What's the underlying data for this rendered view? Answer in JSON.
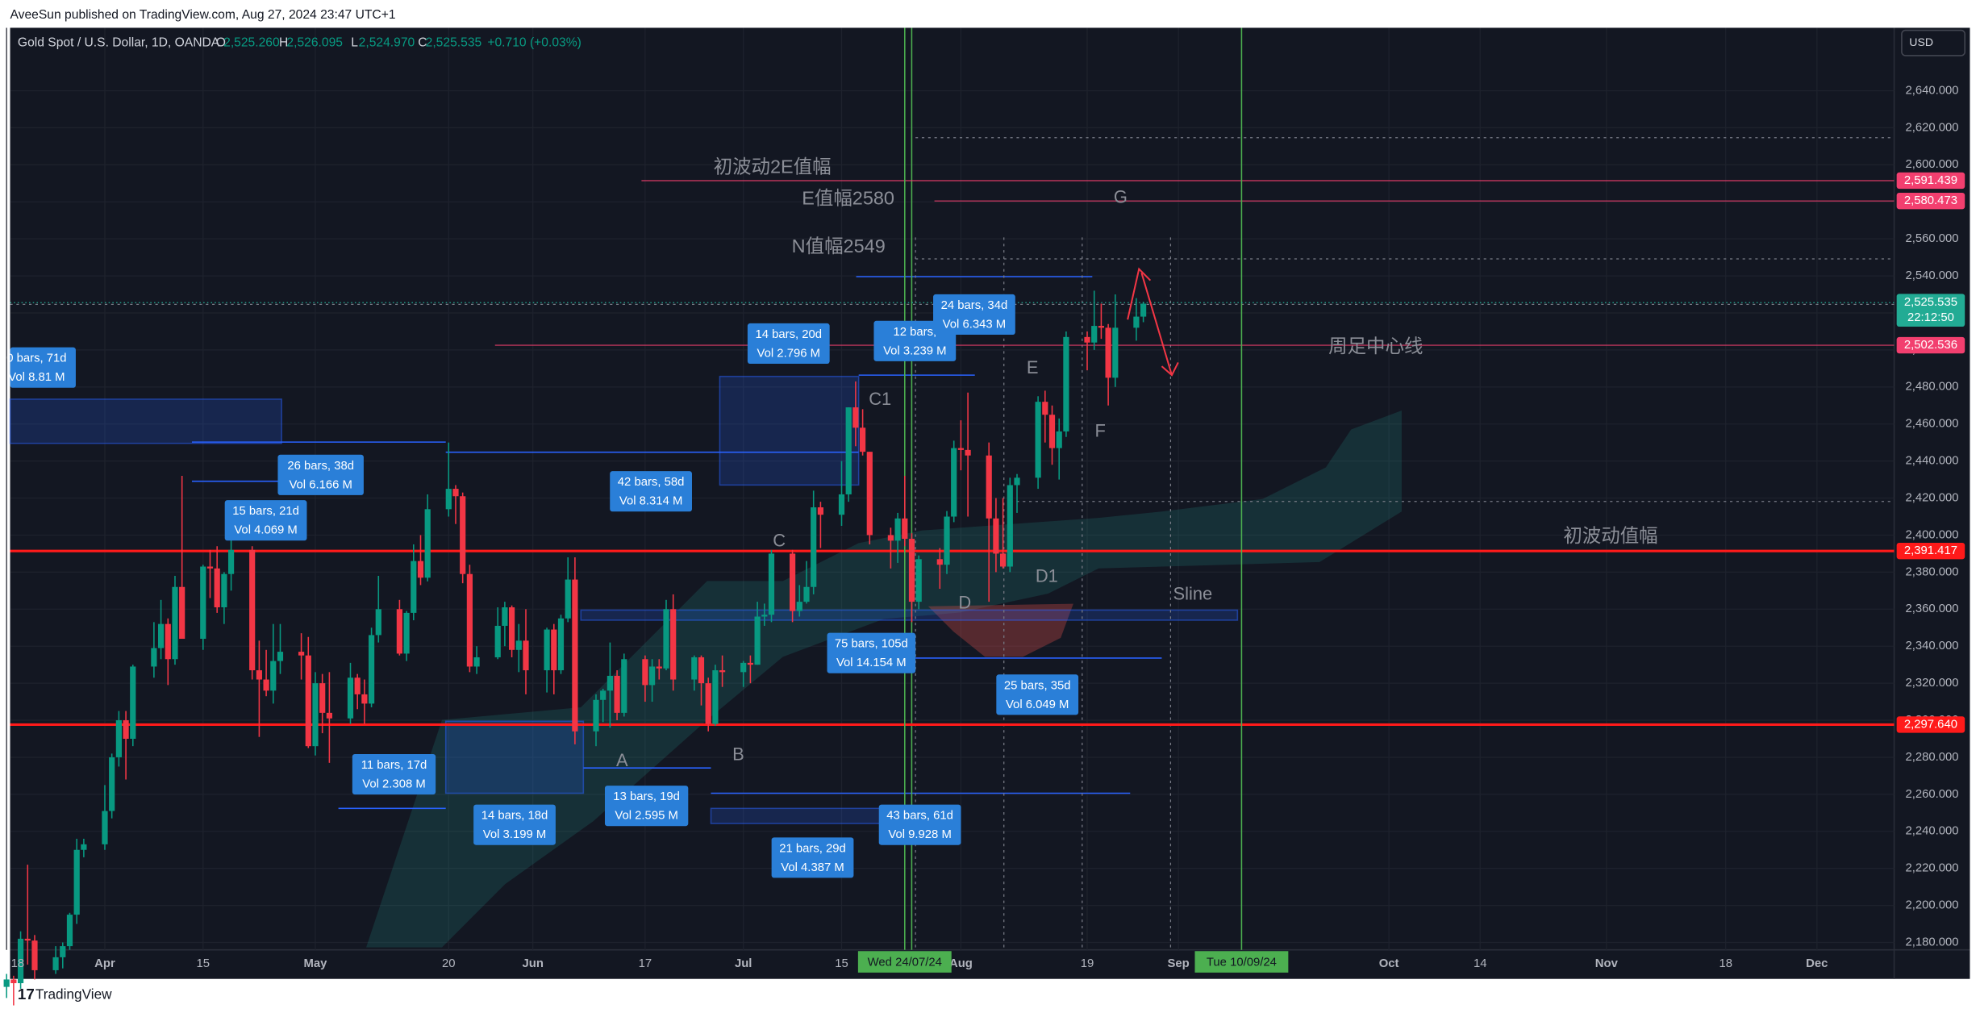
{
  "header": {
    "publisher": "AveeSun published on TradingView.com, Aug 27, 2024 23:47 UTC+1",
    "footer_brand": "TradingView"
  },
  "chart_data": {
    "type": "candlestick",
    "title": "Gold Spot / U.S. Dollar, 1D, OANDA",
    "currency": "USD",
    "legend_ohlc": [
      {
        "key": "O",
        "value": "2,525.260"
      },
      {
        "key": "H",
        "value": "2,526.095"
      },
      {
        "key": "L",
        "value": "2,524.970"
      },
      {
        "key": "C",
        "value": "2,525.535"
      }
    ],
    "change": "+0.710 (+0.03%)",
    "up_color": "#089981",
    "down_color": "#f23645",
    "x": [
      0,
      1,
      2,
      3,
      4,
      7,
      8,
      9,
      10,
      11,
      14,
      15,
      16,
      17,
      18,
      21,
      22,
      23,
      24,
      25,
      28,
      29,
      30,
      31,
      32,
      35,
      36,
      37,
      38,
      39,
      42,
      43,
      44,
      45,
      46,
      49,
      50,
      51,
      52,
      53,
      56,
      57,
      58,
      59,
      60,
      63,
      64,
      65,
      66,
      67,
      70,
      71,
      72,
      73,
      74,
      77,
      78,
      79,
      80,
      81,
      84,
      85,
      86,
      87,
      88,
      91,
      92,
      93,
      94,
      95,
      98,
      99,
      100,
      101,
      102,
      105,
      106,
      107,
      108,
      109,
      112,
      113,
      114,
      115,
      116,
      119,
      120,
      121,
      122,
      123,
      126,
      127,
      128,
      129,
      130,
      133,
      134,
      135,
      136,
      137,
      140,
      141,
      142,
      143,
      144,
      147,
      148,
      149,
      150,
      151,
      154,
      155,
      156,
      157,
      158,
      161,
      162
    ],
    "ohlc": [
      [
        2156,
        2163,
        2150,
        2160
      ],
      [
        2160,
        2162,
        2146,
        2158
      ],
      [
        2158,
        2186,
        2155,
        2182
      ],
      [
        2182,
        2222,
        2168,
        2181
      ],
      [
        2181,
        2184,
        2160,
        2165
      ],
      [
        2165,
        2178,
        2163,
        2172
      ],
      [
        2172,
        2180,
        2166,
        2178
      ],
      [
        2178,
        2196,
        2176,
        2195
      ],
      [
        2195,
        2236,
        2190,
        2230
      ],
      [
        2230,
        2236,
        2226,
        2233
      ],
      [
        2233,
        2265,
        2230,
        2251
      ],
      [
        2251,
        2282,
        2247,
        2280
      ],
      [
        2280,
        2305,
        2275,
        2300
      ],
      [
        2300,
        2305,
        2268,
        2290
      ],
      [
        2290,
        2330,
        2286,
        2329
      ],
      [
        2329,
        2353,
        2323,
        2339
      ],
      [
        2339,
        2365,
        2333,
        2352
      ],
      [
        2352,
        2355,
        2319,
        2333
      ],
      [
        2333,
        2378,
        2330,
        2372
      ],
      [
        2372,
        2432,
        2345,
        2344
      ],
      [
        2344,
        2384,
        2338,
        2383
      ],
      [
        2383,
        2392,
        2366,
        2382
      ],
      [
        2382,
        2394,
        2358,
        2361
      ],
      [
        2361,
        2380,
        2352,
        2379
      ],
      [
        2379,
        2418,
        2370,
        2392
      ],
      [
        2392,
        2394,
        2322,
        2327
      ],
      [
        2327,
        2343,
        2291,
        2322
      ],
      [
        2322,
        2338,
        2313,
        2316
      ],
      [
        2316,
        2352,
        2309,
        2332
      ],
      [
        2332,
        2352,
        2325,
        2337
      ],
      [
        2337,
        2347,
        2322,
        2335
      ],
      [
        2335,
        2345,
        2285,
        2286
      ],
      [
        2286,
        2326,
        2281,
        2320
      ],
      [
        2320,
        2325,
        2293,
        2304
      ],
      [
        2304,
        2326,
        2277,
        2301
      ],
      [
        2301,
        2331,
        2298,
        2323
      ],
      [
        2323,
        2325,
        2306,
        2314
      ],
      [
        2314,
        2322,
        2298,
        2309
      ],
      [
        2309,
        2350,
        2307,
        2346
      ],
      [
        2346,
        2378,
        2342,
        2360
      ],
      [
        2360,
        2365,
        2335,
        2336
      ],
      [
        2336,
        2359,
        2332,
        2358
      ],
      [
        2358,
        2395,
        2354,
        2386
      ],
      [
        2386,
        2400,
        2373,
        2377
      ],
      [
        2377,
        2422,
        2375,
        2414
      ],
      [
        2414,
        2450,
        2410,
        2425
      ],
      [
        2425,
        2427,
        2406,
        2421
      ],
      [
        2421,
        2423,
        2374,
        2379
      ],
      [
        2379,
        2384,
        2326,
        2329
      ],
      [
        2329,
        2340,
        2325,
        2334
      ],
      [
        2334,
        2361,
        2333,
        2351
      ],
      [
        2351,
        2364,
        2340,
        2361
      ],
      [
        2361,
        2362,
        2334,
        2338
      ],
      [
        2338,
        2352,
        2326,
        2343
      ],
      [
        2343,
        2360,
        2314,
        2327
      ],
      [
        2327,
        2350,
        2315,
        2349
      ],
      [
        2349,
        2352,
        2314,
        2327
      ],
      [
        2327,
        2357,
        2325,
        2355
      ],
      [
        2355,
        2388,
        2353,
        2376
      ],
      [
        2376,
        2388,
        2287,
        2294
      ],
      [
        2294,
        2314,
        2286,
        2311
      ],
      [
        2311,
        2317,
        2299,
        2316
      ],
      [
        2316,
        2342,
        2296,
        2324
      ],
      [
        2324,
        2327,
        2300,
        2304
      ],
      [
        2304,
        2336,
        2302,
        2333
      ],
      [
        2333,
        2335,
        2310,
        2319
      ],
      [
        2319,
        2333,
        2310,
        2329
      ],
      [
        2329,
        2333,
        2322,
        2328
      ],
      [
        2328,
        2365,
        2327,
        2360
      ],
      [
        2360,
        2368,
        2316,
        2322
      ],
      [
        2322,
        2335,
        2316,
        2334
      ],
      [
        2334,
        2335,
        2308,
        2320
      ],
      [
        2320,
        2323,
        2294,
        2298
      ],
      [
        2298,
        2330,
        2297,
        2327
      ],
      [
        2327,
        2335,
        2318,
        2326
      ],
      [
        2326,
        2332,
        2318,
        2331
      ],
      [
        2331,
        2335,
        2320,
        2330
      ],
      [
        2330,
        2364,
        2330,
        2356
      ],
      [
        2356,
        2363,
        2351,
        2357
      ],
      [
        2357,
        2392,
        2353,
        2390
      ],
      [
        2390,
        2392,
        2353,
        2359
      ],
      [
        2359,
        2373,
        2356,
        2364
      ],
      [
        2364,
        2386,
        2363,
        2372
      ],
      [
        2372,
        2424,
        2368,
        2415
      ],
      [
        2415,
        2418,
        2393,
        2411
      ],
      [
        2411,
        2440,
        2405,
        2422
      ],
      [
        2422,
        2469,
        2418,
        2469
      ],
      [
        2469,
        2483,
        2448,
        2458
      ],
      [
        2458,
        2468,
        2443,
        2445
      ],
      [
        2445,
        2445,
        2395,
        2400
      ],
      [
        2400,
        2404,
        2382,
        2397
      ],
      [
        2397,
        2412,
        2385,
        2409
      ],
      [
        2409,
        2432,
        2394,
        2398
      ],
      [
        2398,
        2401,
        2353,
        2364
      ],
      [
        2364,
        2389,
        2360,
        2387
      ],
      [
        2387,
        2393,
        2371,
        2384
      ],
      [
        2384,
        2413,
        2379,
        2410
      ],
      [
        2410,
        2451,
        2407,
        2447
      ],
      [
        2447,
        2462,
        2435,
        2446
      ],
      [
        2446,
        2477,
        2410,
        2443
      ],
      [
        2443,
        2450,
        2364,
        2409
      ],
      [
        2409,
        2420,
        2380,
        2390
      ],
      [
        2390,
        2420,
        2382,
        2383
      ],
      [
        2383,
        2431,
        2380,
        2427
      ],
      [
        2427,
        2433,
        2412,
        2431
      ],
      [
        2431,
        2475,
        2425,
        2472
      ],
      [
        2472,
        2478,
        2450,
        2465
      ],
      [
        2465,
        2470,
        2438,
        2447
      ],
      [
        2447,
        2463,
        2430,
        2456
      ],
      [
        2456,
        2510,
        2453,
        2507
      ],
      [
        2507,
        2510,
        2489,
        2504
      ],
      [
        2504,
        2532,
        2500,
        2513
      ],
      [
        2513,
        2525,
        2506,
        2512
      ],
      [
        2512,
        2514,
        2470,
        2485
      ],
      [
        2485,
        2530,
        2480,
        2512
      ],
      [
        2512,
        2528,
        2505,
        2518
      ],
      [
        2518,
        2526,
        2515,
        2525
      ]
    ],
    "xlim": [
      0.5,
      269
    ],
    "ylim": [
      2176,
      2674
    ],
    "xticks": [
      {
        "value": 0,
        "label": "18"
      },
      {
        "value": 14,
        "label": "Apr"
      },
      {
        "value": 28,
        "label": "15"
      },
      {
        "value": 44,
        "label": "May"
      },
      {
        "value": 63,
        "label": "20"
      },
      {
        "value": 75,
        "label": "Jun"
      },
      {
        "value": 91,
        "label": "17"
      },
      {
        "value": 105,
        "label": "Jul"
      },
      {
        "value": 119,
        "label": "15"
      },
      {
        "value": 136,
        "label": "Aug"
      },
      {
        "value": 154,
        "label": "19"
      },
      {
        "value": 167,
        "label": "Sep"
      },
      {
        "value": 197,
        "label": "Oct"
      },
      {
        "value": 210,
        "label": "14"
      },
      {
        "value": 228,
        "label": "Nov"
      },
      {
        "value": 245,
        "label": "18"
      },
      {
        "value": 258,
        "label": "Dec"
      }
    ],
    "yticks": [
      {
        "value": 2180,
        "label": "2,180.000"
      },
      {
        "value": 2200,
        "label": "2,200.000"
      },
      {
        "value": 2220,
        "label": "2,220.000"
      },
      {
        "value": 2240,
        "label": "2,240.000"
      },
      {
        "value": 2260,
        "label": "2,260.000"
      },
      {
        "value": 2280,
        "label": "2,280.000"
      },
      {
        "value": 2300,
        "label": "2,300.000"
      },
      {
        "value": 2320,
        "label": "2,320.000"
      },
      {
        "value": 2340,
        "label": "2,340.000"
      },
      {
        "value": 2360,
        "label": "2,360.000"
      },
      {
        "value": 2380,
        "label": "2,380.000"
      },
      {
        "value": 2400,
        "label": "2,400.000"
      },
      {
        "value": 2420,
        "label": "2,420.000"
      },
      {
        "value": 2440,
        "label": "2,440.000"
      },
      {
        "value": 2460,
        "label": "2,460.000"
      },
      {
        "value": 2480,
        "label": "2,480.000"
      },
      {
        "value": 2500,
        "label": "2,500.000"
      },
      {
        "value": 2520,
        "label": "2,520.000"
      },
      {
        "value": 2540,
        "label": "2,540.000"
      },
      {
        "value": 2560,
        "label": "2,560.000"
      },
      {
        "value": 2580,
        "label": "2,580.000"
      },
      {
        "value": 2600,
        "label": "2,600.000"
      },
      {
        "value": 2620,
        "label": "2,620.000"
      },
      {
        "value": 2640,
        "label": "2,640.000"
      }
    ],
    "grid": true,
    "price_lines": [
      {
        "value": 2591.439,
        "label": "2,591.439",
        "color": "#f23f6f"
      },
      {
        "value": 2580.473,
        "label": "2,580.473",
        "color": "#f23f6f"
      },
      {
        "value": 2502.536,
        "label": "2,502.536",
        "color": "#f23f6f"
      },
      {
        "value": 2391.417,
        "label": "2,391.417",
        "color": "#ff1a1a"
      },
      {
        "value": 2297.64,
        "label": "2,297.640",
        "color": "#ff1a1a"
      }
    ],
    "last_price": {
      "value": 2525.535,
      "label": "2,525.535",
      "countdown": "22:12:50",
      "color": "#22ab94"
    },
    "vertical_lines": [
      {
        "x": 128,
        "label": "Wed 24/07/24"
      },
      {
        "x": 176,
        "label": "Tue 10/09/24"
      }
    ],
    "annotations": [
      "初波动2E值幅",
      "E值幅2580",
      "G",
      "N值幅2549",
      "周足中心线",
      "初波动值幅",
      "Sline",
      "C1",
      "E",
      "F",
      "C",
      "D1",
      "D",
      "A",
      "B"
    ],
    "measures": [
      {
        "bars": "0 bars, 71d",
        "vol": "Vol 8.81 M"
      },
      {
        "bars": "26 bars, 38d",
        "vol": "Vol 6.166 M"
      },
      {
        "bars": "15 bars, 21d",
        "vol": "Vol 4.069 M"
      },
      {
        "bars": "42 bars, 58d",
        "vol": "Vol 8.314 M"
      },
      {
        "bars": "14 bars, 20d",
        "vol": "Vol 2.796 M"
      },
      {
        "bars": "12 bars,",
        "vol": "Vol 3.239 M"
      },
      {
        "bars": "24 bars, 34d",
        "vol": "Vol 6.343 M"
      },
      {
        "bars": "75 bars, 105d",
        "vol": "Vol 14.154 M"
      },
      {
        "bars": "25 bars, 35d",
        "vol": "Vol 6.049 M"
      },
      {
        "bars": "11 bars, 17d",
        "vol": "Vol 2.308 M"
      },
      {
        "bars": "14 bars, 18d",
        "vol": "Vol 3.199 M"
      },
      {
        "bars": "13 bars, 19d",
        "vol": "Vol 2.595 M"
      },
      {
        "bars": "43 bars, 61d",
        "vol": "Vol 9.928 M"
      },
      {
        "bars": "21 bars, 29d",
        "vol": "Vol 4.387 M"
      }
    ]
  }
}
